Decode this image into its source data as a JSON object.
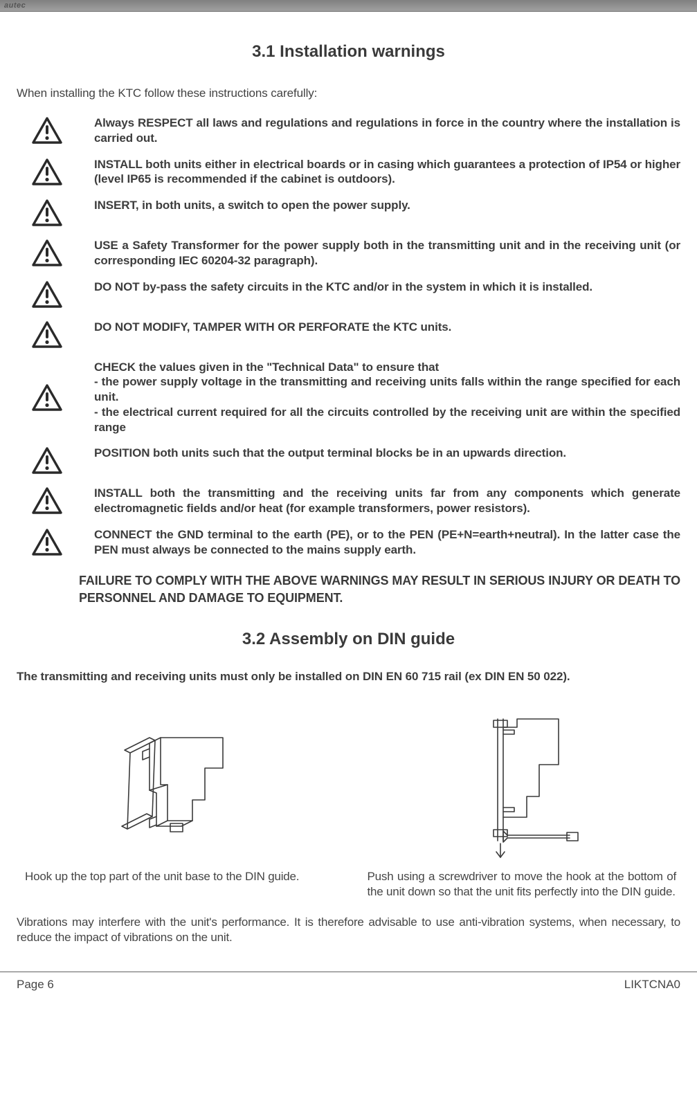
{
  "logo_text": "autec",
  "section1_title": "3.1 Installation warnings",
  "intro": "When installing the KTC follow these instructions carefully:",
  "warnings": [
    "Always RESPECT all laws and regulations and regulations in force in the country where the installation is carried out.",
    "INSTALL both units either in electrical boards or in casing which guarantees a protection of IP54 or higher (level IP65 is recommended if the cabinet is outdoors).",
    "INSERT, in both units, a switch to open the power supply.",
    "USE a Safety Transformer for the power supply both in the transmitting unit and in the receiving unit (or corresponding IEC 60204-32 paragraph).",
    "DO NOT by-pass the safety circuits in the KTC and/or in the system in which it is installed.",
    "DO NOT MODIFY, TAMPER WITH OR PERFORATE the KTC units.",
    "CHECK the values given in the \"Technical Data\" to ensure that\n- the power supply voltage in the transmitting and receiving units falls within the range specified for each unit.\n- the electrical current required for all the circuits controlled by the receiving unit are within the specified range",
    "POSITION both units such that the output terminal blocks be in an upwards direction.",
    "INSTALL both the transmitting and the receiving units far from any components which generate electromagnetic fields and/or heat (for example transformers, power resistors).",
    "CONNECT the GND terminal to the earth (PE), or to the PEN (PE+N=earth+neutral). In the latter case the PEN must always be connected to the mains supply earth."
  ],
  "failure_text": "FAILURE TO COMPLY WITH THE ABOVE WARNINGS MAY RESULT IN SERIOUS INJURY OR DEATH TO PERSONNEL AND DAMAGE TO EQUIPMENT.",
  "section2_title": "3.2 Assembly on DIN guide",
  "din_intro": "The transmitting and receiving units must only be installed on DIN EN 60 715 rail (ex DIN EN 50 022).",
  "caption1": "Hook up the top part of the unit base to the DIN guide.",
  "caption2": "Push using a screwdriver to move the hook at the bottom of the unit down so that the unit fits perfectly into the DIN guide.",
  "vibration_text": "Vibrations may interfere with the unit's performance. It is therefore advisable to use anti-vibration systems, when necessary, to reduce the impact of vibrations on the unit.",
  "page_number": "Page 6",
  "doc_code": "LIKTCNA0",
  "colors": {
    "text": "#404040",
    "heading": "#3a3a3a",
    "rule": "#606060"
  }
}
